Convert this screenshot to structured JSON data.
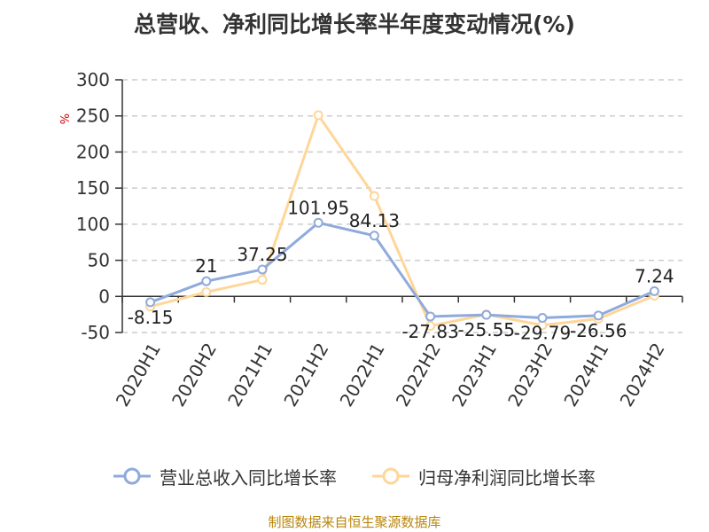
{
  "title": "总营收、净利同比增长率半年度变动情况(%)",
  "source": "制图数据来自恒生聚源数据库",
  "colors": {
    "revenue": "#8faadc",
    "profit": "#ffd699",
    "ylabel": "#cc0000"
  },
  "chart_data": {
    "type": "line",
    "title": "总营收、净利同比增长率半年度变动情况(%)",
    "xlabel": "",
    "ylabel": "%",
    "categories": [
      "2020H1",
      "2020H2",
      "2021H1",
      "2021H2",
      "2022H1",
      "2022H2",
      "2023H1",
      "2023H2",
      "2024H1",
      "2024H2"
    ],
    "ylim": [
      -50,
      300
    ],
    "yticks": [
      -50,
      0,
      50,
      100,
      150,
      200,
      250,
      300
    ],
    "grid": true,
    "legend": "bottom",
    "series": [
      {
        "name": "营业总收入同比增长率",
        "values": [
          -8.15,
          21,
          37.25,
          101.95,
          84.13,
          -27.83,
          -25.55,
          -29.79,
          -26.56,
          7.24
        ],
        "labels": [
          "-8.15",
          "21",
          "37.25",
          "101.95",
          "84.13",
          "-27.83",
          "-25.55",
          "-29.79",
          "-26.56",
          "7.24"
        ]
      },
      {
        "name": "归母净利润同比增长率",
        "values": [
          -14,
          6,
          23,
          251,
          139,
          -41,
          -25,
          -40,
          -31,
          1
        ]
      }
    ]
  }
}
